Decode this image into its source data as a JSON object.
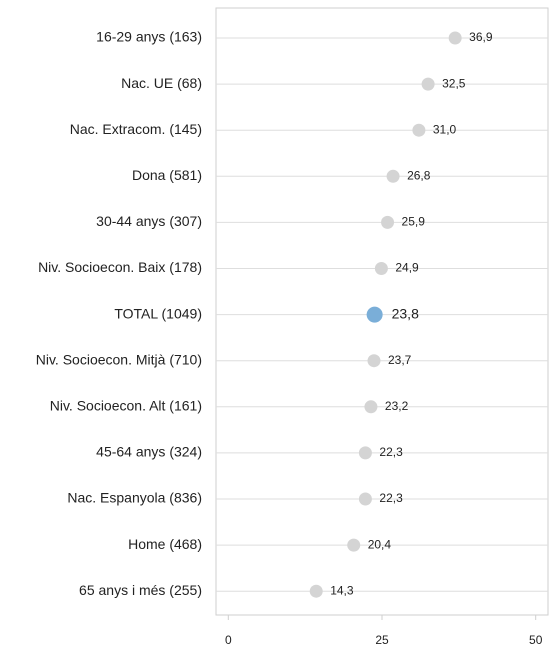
{
  "chart_data": {
    "type": "dot",
    "categories": [
      "16-29 anys (163)",
      "Nac. UE (68)",
      "Nac. Extracom. (145)",
      "Dona (581)",
      "30-44 anys (307)",
      "Niv. Socioecon. Baix (178)",
      "TOTAL (1049)",
      "Niv. Socioecon. Mitjà (710)",
      "Niv. Socioecon. Alt (161)",
      "45-64 anys (324)",
      "Nac. Espanyola (836)",
      "Home (468)",
      "65 anys i més (255)"
    ],
    "values": [
      36.9,
      32.5,
      31.0,
      26.8,
      25.9,
      24.9,
      23.8,
      23.7,
      23.2,
      22.3,
      22.3,
      20.4,
      14.3
    ],
    "value_labels": [
      "36,9",
      "32,5",
      "31,0",
      "26,8",
      "25,9",
      "24,9",
      "23,8",
      "23,7",
      "23,2",
      "22,3",
      "22,3",
      "20,4",
      "14,3"
    ],
    "colors": [
      "#d4d4d4",
      "#d4d4d4",
      "#d4d4d4",
      "#d4d4d4",
      "#d4d4d4",
      "#d4d4d4",
      "#7aaed8",
      "#d4d4d4",
      "#d4d4d4",
      "#d4d4d4",
      "#d4d4d4",
      "#d4d4d4",
      "#d4d4d4"
    ],
    "xlim": [
      -2,
      52
    ],
    "xticks": [
      0,
      25,
      50
    ]
  }
}
